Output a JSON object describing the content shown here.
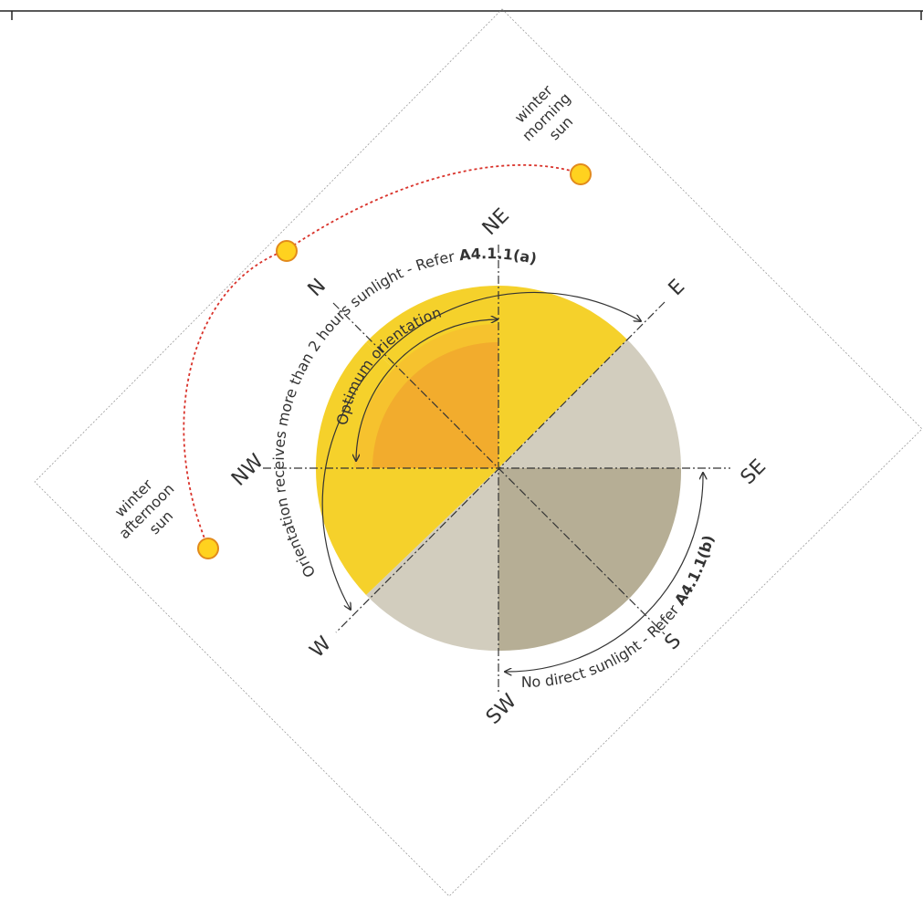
{
  "directions": {
    "n": "N",
    "ne": "NE",
    "e": "E",
    "se": "SE",
    "s": "S",
    "sw": "SW",
    "w": "W",
    "nw": "NW"
  },
  "arc_labels": {
    "more_sun_text": "Orientation receives more than 2 hours sunlight - Refer ",
    "more_sun_ref": "A4.1.1(a)",
    "optimum": "Optimum orientation",
    "no_sun_text": "No direct sunlight - Refer ",
    "no_sun_ref": "A4.1.1(b)"
  },
  "sun_labels": {
    "morning": [
      "winter",
      "morning",
      "sun"
    ],
    "afternoon": [
      "winter",
      "afternoon",
      "sun"
    ]
  },
  "colors": {
    "sunlit": "#F5D12B",
    "optimum_outer": "#F6C22E",
    "optimum_inner": "#F2AC2D",
    "shade_light": "#D2CDBE",
    "shade_dark": "#B6AE95",
    "sun_fill": "#FFD21F",
    "sun_stroke": "#E28A1C",
    "sun_path": "#D9332B",
    "axis": "#333333"
  },
  "icons": {
    "sun": "sun-icon"
  }
}
